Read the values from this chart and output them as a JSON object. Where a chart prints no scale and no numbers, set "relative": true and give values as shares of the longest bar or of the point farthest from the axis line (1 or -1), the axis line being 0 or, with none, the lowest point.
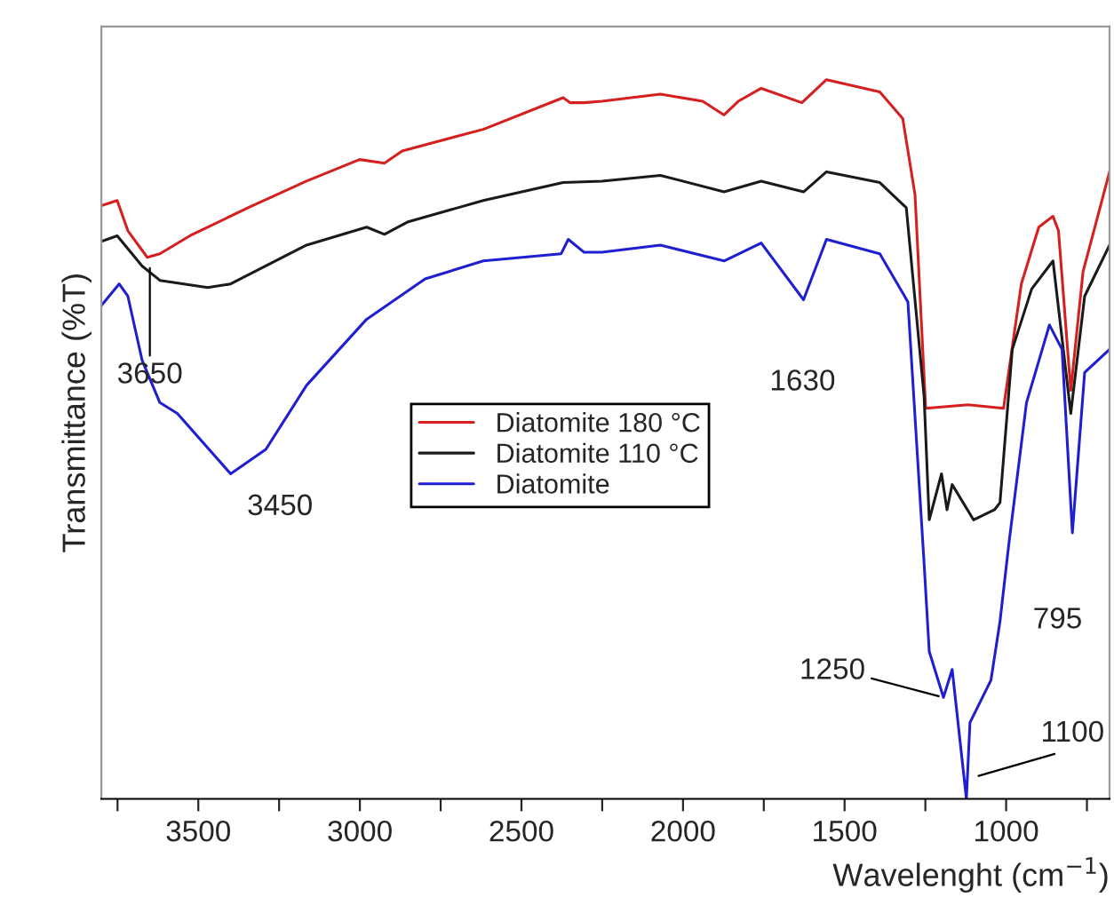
{
  "chart_data": {
    "type": "line",
    "relative": true,
    "xlabel": "Wavelenght (cm$^{−1}$)",
    "ylabel": "Transmittance (%T)",
    "xlim": [
      3800,
      680
    ],
    "xticks": [
      {
        "value": 3750,
        "label": null
      },
      3500,
      {
        "value": 3250,
        "label": null
      },
      3000,
      {
        "value": 2750,
        "label": null
      },
      2500,
      {
        "value": 2250,
        "label": null
      },
      2000,
      {
        "value": 1750,
        "label": null
      },
      1500,
      {
        "value": 1250,
        "label": null
      },
      1000,
      {
        "value": 750,
        "label": null
      }
    ],
    "legend": "center",
    "grid": false,
    "tick_labels": "x",
    "marker": "none",
    "line_style": "solid",
    "series": [
      {
        "name": "Diatomite 180 °C",
        "color": "#d62020",
        "x": [
          3800,
          3751,
          3718,
          3658,
          3619,
          3526,
          3346,
          3165,
          3001,
          2924,
          2869,
          2618,
          2371,
          2349,
          2306,
          2251,
          2070,
          1939,
          1873,
          1829,
          1758,
          1632,
          1556,
          1391,
          1320,
          1282,
          1249,
          1118,
          1008,
          953,
          899,
          855,
          838,
          800,
          762,
          680
        ],
        "values": [
          0.825,
          0.832,
          0.79,
          0.753,
          0.758,
          0.783,
          0.822,
          0.859,
          0.889,
          0.884,
          0.901,
          0.931,
          0.975,
          0.968,
          0.968,
          0.97,
          0.98,
          0.97,
          0.951,
          0.97,
          0.988,
          0.968,
          1.0,
          0.983,
          0.946,
          0.84,
          0.543,
          0.548,
          0.543,
          0.716,
          0.795,
          0.81,
          0.79,
          0.568,
          0.733,
          0.872
        ]
      },
      {
        "name": "Diatomite 110 °C",
        "color": "#1a1a1a",
        "x": [
          3800,
          3751,
          3674,
          3619,
          3471,
          3400,
          3165,
          2979,
          2924,
          2853,
          2618,
          2371,
          2251,
          2070,
          1873,
          1758,
          1627,
          1556,
          1391,
          1309,
          1254,
          1238,
          1200,
          1183,
          1167,
          1101,
          1036,
          1019,
          981,
          921,
          855,
          800,
          757,
          680
        ],
        "values": [
          0.775,
          0.783,
          0.741,
          0.721,
          0.711,
          0.716,
          0.77,
          0.795,
          0.785,
          0.802,
          0.832,
          0.857,
          0.859,
          0.867,
          0.844,
          0.859,
          0.844,
          0.872,
          0.857,
          0.822,
          0.56,
          0.388,
          0.452,
          0.402,
          0.437,
          0.388,
          0.402,
          0.412,
          0.625,
          0.709,
          0.748,
          0.536,
          0.699,
          0.77
        ]
      },
      {
        "name": "Diatomite",
        "color": "#1f1fd0",
        "x": [
          3800,
          3745,
          3718,
          3674,
          3619,
          3565,
          3400,
          3291,
          3165,
          2979,
          2798,
          2618,
          2377,
          2355,
          2306,
          2251,
          2070,
          1873,
          1758,
          1627,
          1556,
          1391,
          1304,
          1254,
          1238,
          1194,
          1167,
          1123,
          1112,
          1047,
          1019,
          992,
          937,
          866,
          827,
          795,
          757,
          680
        ],
        "values": [
          0.686,
          0.716,
          0.699,
          0.61,
          0.551,
          0.536,
          0.452,
          0.486,
          0.575,
          0.667,
          0.723,
          0.748,
          0.758,
          0.778,
          0.76,
          0.76,
          0.77,
          0.748,
          0.773,
          0.694,
          0.778,
          0.758,
          0.691,
          0.328,
          0.205,
          0.141,
          0.18,
          0.0,
          0.106,
          0.165,
          0.247,
          0.353,
          0.551,
          0.659,
          0.625,
          0.37,
          0.593,
          0.625
        ]
      }
    ],
    "annotations": [
      {
        "text": "3650",
        "x": 3650,
        "y": 0.745
      },
      {
        "text": "3450",
        "x": 3400,
        "y": 0.452
      },
      {
        "text": "1630",
        "x": 1630,
        "y": 0.694
      },
      {
        "text": "1250",
        "x": 1194,
        "y": 0.141
      },
      {
        "text": "1100",
        "x": 1100,
        "y": 0.03
      },
      {
        "text": "795",
        "x": 795,
        "y": 0.37
      }
    ]
  }
}
